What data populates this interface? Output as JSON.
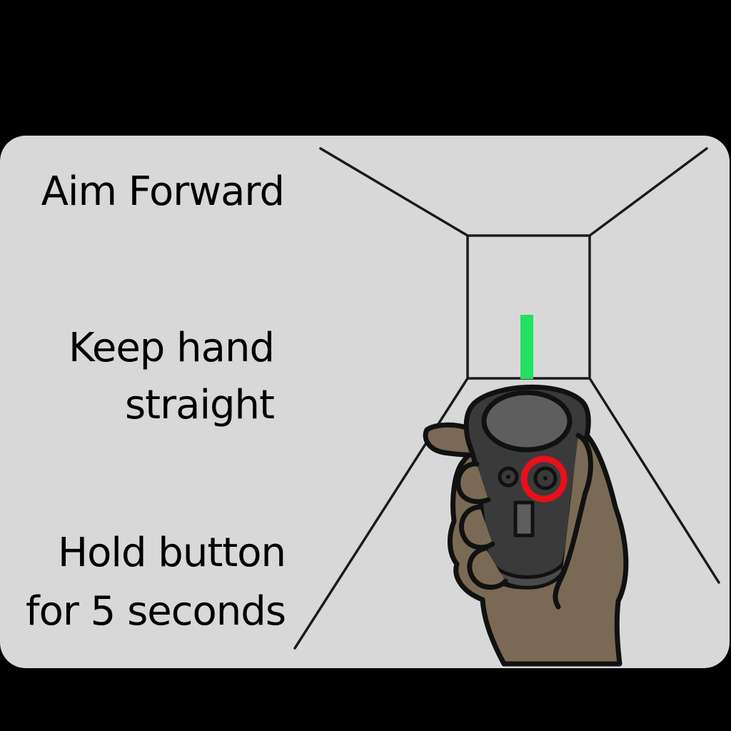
{
  "instructions": {
    "aim": "Aim Forward",
    "keep_line1": "Keep hand",
    "keep_line2": "straight",
    "hold_line1": "Hold button",
    "hold_line2": "for 5 seconds"
  },
  "colors": {
    "background": "#000000",
    "panel": "#d8d8d8",
    "line": "#1a1a1a",
    "aim_indicator": "#22e060",
    "skin": "#7a6a55",
    "controller_body": "#3a3a3a",
    "controller_top": "#5e5e5e",
    "highlight_ring": "#e8101a"
  },
  "icons": {
    "hand": "hand-holding-controller-icon",
    "indicator": "aim-beam-icon",
    "target_button": "highlighted-button-icon"
  }
}
